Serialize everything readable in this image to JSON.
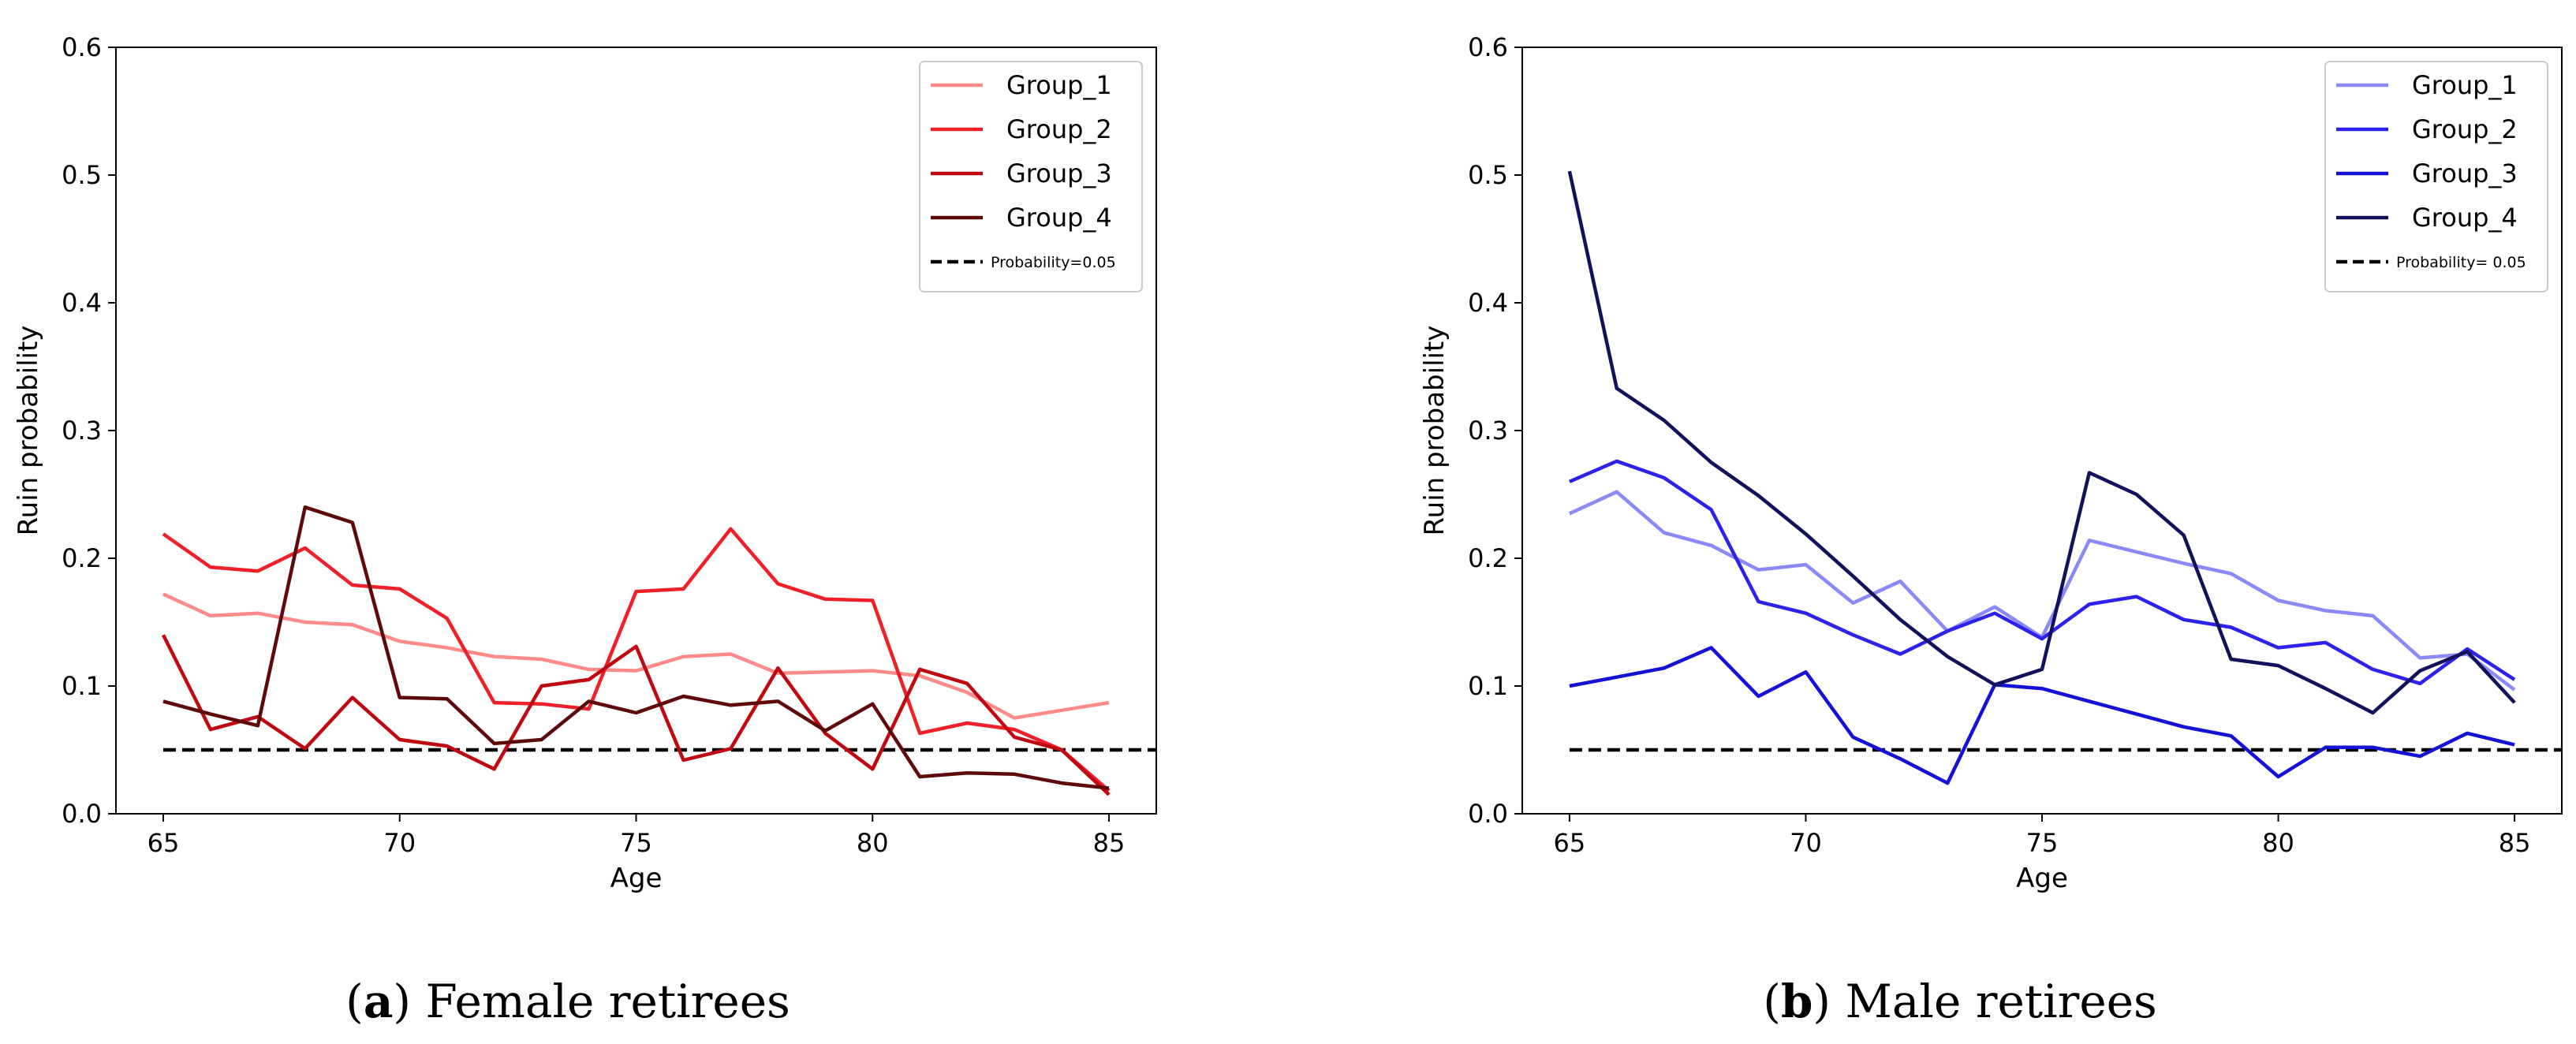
{
  "chart_data": [
    {
      "type": "line",
      "caption_letter": "a",
      "caption_text": "Female retirees",
      "xlabel": "Age",
      "ylabel": "Ruin probability",
      "xlim": [
        64,
        86
      ],
      "ylim": [
        0,
        0.6
      ],
      "xticks": [
        65,
        70,
        75,
        80,
        85
      ],
      "yticks": [
        "0.0",
        "0.1",
        "0.2",
        "0.3",
        "0.4",
        "0.5",
        "0.6"
      ],
      "legend_position": "top-right",
      "x": [
        65,
        66,
        67,
        68,
        69,
        70,
        71,
        72,
        73,
        74,
        75,
        76,
        77,
        78,
        79,
        80,
        81,
        82,
        83,
        84,
        85
      ],
      "series": [
        {
          "name": "Group_1",
          "color": "#ff8a8a",
          "values": [
            0.172,
            0.155,
            0.157,
            0.15,
            0.148,
            0.135,
            0.13,
            0.123,
            0.121,
            0.113,
            0.112,
            0.123,
            0.125,
            0.11,
            0.111,
            0.112,
            0.108,
            0.095,
            0.075,
            0.081,
            0.087
          ]
        },
        {
          "name": "Group_2",
          "color": "#f0202a",
          "values": [
            0.219,
            0.193,
            0.19,
            0.208,
            0.179,
            0.176,
            0.153,
            0.087,
            0.086,
            0.082,
            0.174,
            0.176,
            0.223,
            0.18,
            0.168,
            0.167,
            0.063,
            0.071,
            0.066,
            0.05,
            0.018
          ]
        },
        {
          "name": "Group_3",
          "color": "#c00810",
          "values": [
            0.14,
            0.066,
            0.076,
            0.051,
            0.091,
            0.058,
            0.053,
            0.035,
            0.1,
            0.105,
            0.131,
            0.042,
            0.051,
            0.114,
            0.063,
            0.035,
            0.113,
            0.102,
            0.06,
            0.05,
            0.015
          ]
        },
        {
          "name": "Group_4",
          "color": "#5e0a0a",
          "values": [
            0.088,
            0.078,
            0.069,
            0.24,
            0.228,
            0.091,
            0.09,
            0.055,
            0.058,
            0.088,
            0.079,
            0.092,
            0.085,
            0.088,
            0.065,
            0.086,
            0.029,
            0.032,
            0.031,
            0.024,
            0.02
          ]
        }
      ],
      "reference_line": {
        "label": "Probability=0.05",
        "value": 0.05,
        "color": "#000000"
      }
    },
    {
      "type": "line",
      "caption_letter": "b",
      "caption_text": "Male retirees",
      "xlabel": "Age",
      "ylabel": "Ruin probability",
      "xlim": [
        64,
        86
      ],
      "ylim": [
        0,
        0.6
      ],
      "xticks": [
        65,
        70,
        75,
        80,
        85
      ],
      "yticks": [
        "0.0",
        "0.1",
        "0.2",
        "0.3",
        "0.4",
        "0.5",
        "0.6"
      ],
      "legend_position": "top-right",
      "x": [
        65,
        66,
        67,
        68,
        69,
        70,
        71,
        72,
        73,
        74,
        75,
        76,
        77,
        78,
        79,
        80,
        81,
        82,
        83,
        84,
        85
      ],
      "series": [
        {
          "name": "Group_1",
          "color": "#8a8af6",
          "values": [
            0.235,
            0.252,
            0.22,
            0.21,
            0.191,
            0.195,
            0.165,
            0.182,
            0.143,
            0.162,
            0.138,
            0.214,
            0.205,
            0.196,
            0.188,
            0.167,
            0.159,
            0.155,
            0.122,
            0.125,
            0.097
          ]
        },
        {
          "name": "Group_2",
          "color": "#2c22ee",
          "values": [
            0.26,
            0.276,
            0.263,
            0.238,
            0.166,
            0.157,
            0.14,
            0.125,
            0.143,
            0.157,
            0.137,
            0.164,
            0.17,
            0.152,
            0.146,
            0.13,
            0.134,
            0.113,
            0.102,
            0.129,
            0.105
          ]
        },
        {
          "name": "Group_3",
          "color": "#1412d6",
          "values": [
            0.1,
            0.107,
            0.114,
            0.13,
            0.092,
            0.111,
            0.06,
            0.043,
            0.024,
            0.101,
            0.098,
            0.088,
            0.078,
            0.068,
            0.061,
            0.029,
            0.052,
            0.052,
            0.045,
            0.063,
            0.054
          ]
        },
        {
          "name": "Group_4",
          "color": "#12125c",
          "values": [
            0.503,
            0.333,
            0.308,
            0.275,
            0.249,
            0.219,
            0.186,
            0.152,
            0.123,
            0.101,
            0.113,
            0.267,
            0.25,
            0.218,
            0.121,
            0.116,
            0.098,
            0.079,
            0.112,
            0.127,
            0.087
          ]
        }
      ],
      "reference_line": {
        "label": "Probability= 0.05",
        "value": 0.05,
        "color": "#000000"
      }
    }
  ]
}
